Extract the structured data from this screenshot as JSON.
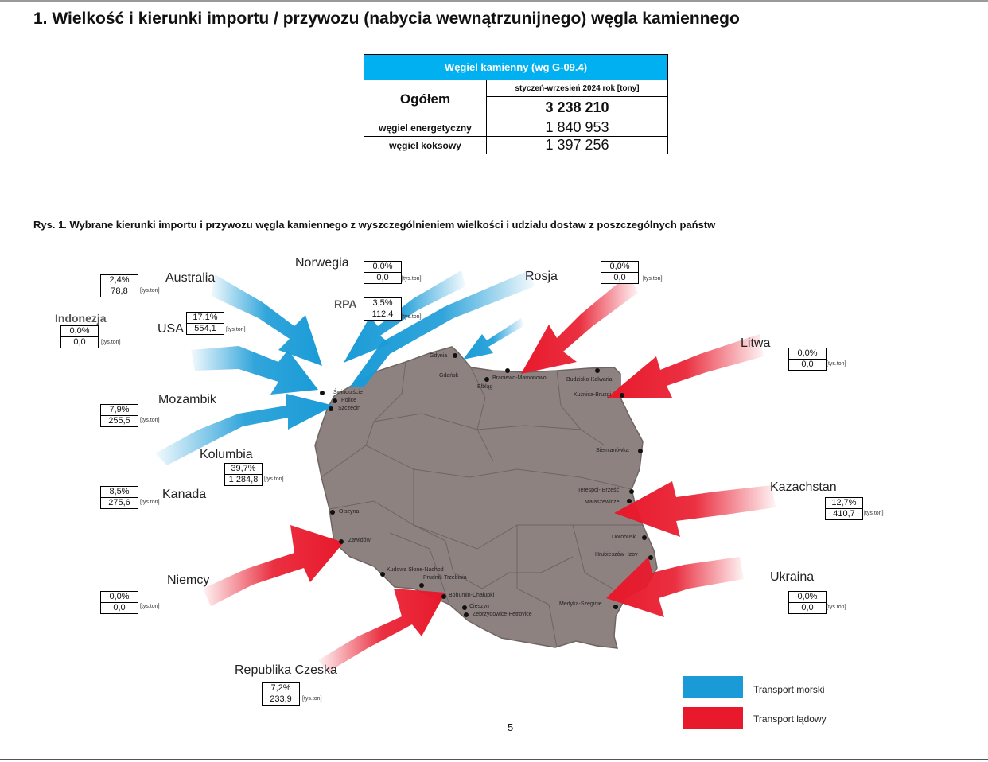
{
  "title": "1. Wielkość i kierunki importu / przywozu (nabycia wewnątrzunijnego) węgla kamiennego",
  "summary": {
    "header": "Węgiel kamienny (wg G-09.4)",
    "total_label": "Ogółem",
    "period": "styczeń-wrzesień 2024 rok [tony]",
    "total_value": "3 238 210",
    "rows": [
      {
        "label": "węgiel energetyczny",
        "value": "1 840 953"
      },
      {
        "label": "węgiel koksowy",
        "value": "1 397 256"
      }
    ]
  },
  "caption": "Rys. 1.   Wybrane kierunki importu i przywozu węgla kamiennego z wyszczególnieniem wielkości i udziału dostaw z poszczególnych państw",
  "unit_label": "[tys.ton]",
  "countries": {
    "norwegia": {
      "name": "Norwegia",
      "share": "0,0%",
      "volume": "0,0"
    },
    "rosja": {
      "name": "Rosja",
      "share": "0,0%",
      "volume": "0,0"
    },
    "rpa": {
      "name": "RPA",
      "share": "3,5%",
      "volume": "112,4"
    },
    "australia": {
      "name": "Australia",
      "share": "2,4%",
      "volume": "78,8"
    },
    "indonezja": {
      "name": "Indonezja",
      "share": "0,0%",
      "volume": "0,0"
    },
    "usa": {
      "name": "USA",
      "share": "17,1%",
      "volume": "554,1"
    },
    "litwa": {
      "name": "Litwa",
      "share": "0,0%",
      "volume": "0,0"
    },
    "mozambik": {
      "name": "Mozambik",
      "share": "7,9%",
      "volume": "255,5"
    },
    "kolumbia": {
      "name": "Kolumbia",
      "share": "39,7%",
      "volume": "1 284,8"
    },
    "kanada": {
      "name": "Kanada",
      "share": "8,5%",
      "volume": "275,6"
    },
    "kazachstan": {
      "name": "Kazachstan",
      "share": "12,7%",
      "volume": "410,7"
    },
    "niemcy": {
      "name": "Niemcy",
      "share": "0,0%",
      "volume": "0,0"
    },
    "ukraina": {
      "name": "Ukraina",
      "share": "0,0%",
      "volume": "0,0"
    },
    "czechy": {
      "name": "Republika Czeska",
      "share": "7,2%",
      "volume": "233,9"
    }
  },
  "cities": {
    "gdynia": "Gdynia",
    "gdansk": "Gdańsk",
    "elblag": "Elbląg",
    "braniewo": "Braniewo-Mamonowo",
    "budzisko": "Budzisko-Kalwaria",
    "kuznica": "Kuźnica-Bruzgi",
    "swinoujscie": "Świnoujście",
    "police": "Police",
    "szczecin": "Szczecin",
    "siemianowka": "Siemianówka",
    "terespol": "Terespol- Brześć",
    "malaszewicze": "Małaszewicze",
    "dorohusk": "Dorohusk",
    "hrubieszow": "Hrubieszów -Izov",
    "medyka": "Medyka-Szeginie",
    "olszyna": "Olszyna",
    "zawidow": "Zawidów",
    "kudowa": "Kudowa Słone-Nachod",
    "prudnik": "Prudnik-Trzebinia",
    "bohumin": "Bohumin-Chałupki",
    "cieszyn": "Cieszyn",
    "zebrzydowice": "Zebrzydowice-Petrovice"
  },
  "legend": [
    {
      "label": "Transport morski",
      "color": "#1a9bd7"
    },
    {
      "label": "Transport lądowy",
      "color": "#e8192c"
    }
  ],
  "colors": {
    "sea": "#1a9bd7",
    "land": "#e8192c",
    "map": "#8e8281",
    "table_header": "#00b0f0"
  },
  "page_number": "5"
}
